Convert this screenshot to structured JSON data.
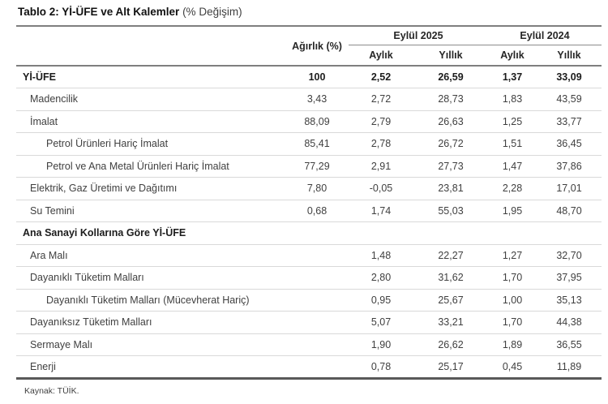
{
  "title": {
    "bold": "Tablo 2: Yİ-ÜFE ve Alt Kalemler",
    "normal": " (% Değişim)"
  },
  "table": {
    "weight_header": "Ağırlık (%)",
    "groups": [
      {
        "label": "Eylül 2025"
      },
      {
        "label": "Eylül 2024"
      }
    ],
    "sub_headers": [
      "Aylık",
      "Yıllık",
      "Aylık",
      "Yıllık"
    ],
    "rows": [
      {
        "label": "Yİ-ÜFE",
        "indent": 0,
        "bold": true,
        "values": [
          "100",
          "2,52",
          "26,59",
          "1,37",
          "33,09"
        ]
      },
      {
        "label": "Madencilik",
        "indent": 1,
        "bold": false,
        "values": [
          "3,43",
          "2,72",
          "28,73",
          "1,83",
          "43,59"
        ]
      },
      {
        "label": "İmalat",
        "indent": 1,
        "bold": false,
        "values": [
          "88,09",
          "2,79",
          "26,63",
          "1,25",
          "33,77"
        ]
      },
      {
        "label": "Petrol Ürünleri Hariç İmalat",
        "indent": 2,
        "bold": false,
        "values": [
          "85,41",
          "2,78",
          "26,72",
          "1,51",
          "36,45"
        ]
      },
      {
        "label": "Petrol ve Ana Metal Ürünleri Hariç İmalat",
        "indent": 2,
        "bold": false,
        "values": [
          "77,29",
          "2,91",
          "27,73",
          "1,47",
          "37,86"
        ]
      },
      {
        "label": "Elektrik, Gaz Üretimi ve Dağıtımı",
        "indent": 1,
        "bold": false,
        "values": [
          "7,80",
          "-0,05",
          "23,81",
          "2,28",
          "17,01"
        ]
      },
      {
        "label": "Su Temini",
        "indent": 1,
        "bold": false,
        "values": [
          "0,68",
          "1,74",
          "55,03",
          "1,95",
          "48,70"
        ]
      },
      {
        "label": "Ana Sanayi Kollarına Göre Yİ-ÜFE",
        "indent": 0,
        "bold": true,
        "values": [
          "",
          "",
          "",
          "",
          ""
        ]
      },
      {
        "label": "Ara Malı",
        "indent": 1,
        "bold": false,
        "values": [
          "",
          "1,48",
          "22,27",
          "1,27",
          "32,70"
        ]
      },
      {
        "label": "Dayanıklı Tüketim Malları",
        "indent": 1,
        "bold": false,
        "values": [
          "",
          "2,80",
          "31,62",
          "1,70",
          "37,95"
        ]
      },
      {
        "label": "Dayanıklı Tüketim Malları (Mücevherat Hariç)",
        "indent": 2,
        "bold": false,
        "values": [
          "",
          "0,95",
          "25,67",
          "1,00",
          "35,13"
        ]
      },
      {
        "label": "Dayanıksız Tüketim Malları",
        "indent": 1,
        "bold": false,
        "values": [
          "",
          "5,07",
          "33,21",
          "1,70",
          "44,38"
        ]
      },
      {
        "label": "Sermaye Malı",
        "indent": 1,
        "bold": false,
        "values": [
          "",
          "1,90",
          "26,62",
          "1,89",
          "36,55"
        ]
      },
      {
        "label": "Enerji",
        "indent": 1,
        "bold": false,
        "values": [
          "",
          "0,78",
          "25,17",
          "0,45",
          "11,89"
        ]
      }
    ]
  },
  "footer": {
    "source": "Kaynak: TÜİK."
  },
  "colors": {
    "title_text": "#111111",
    "body_text": "#404040",
    "rule_dark": "#7f7f7f",
    "rule_bottom": "#595959",
    "rule_light": "#d9d9d9"
  }
}
